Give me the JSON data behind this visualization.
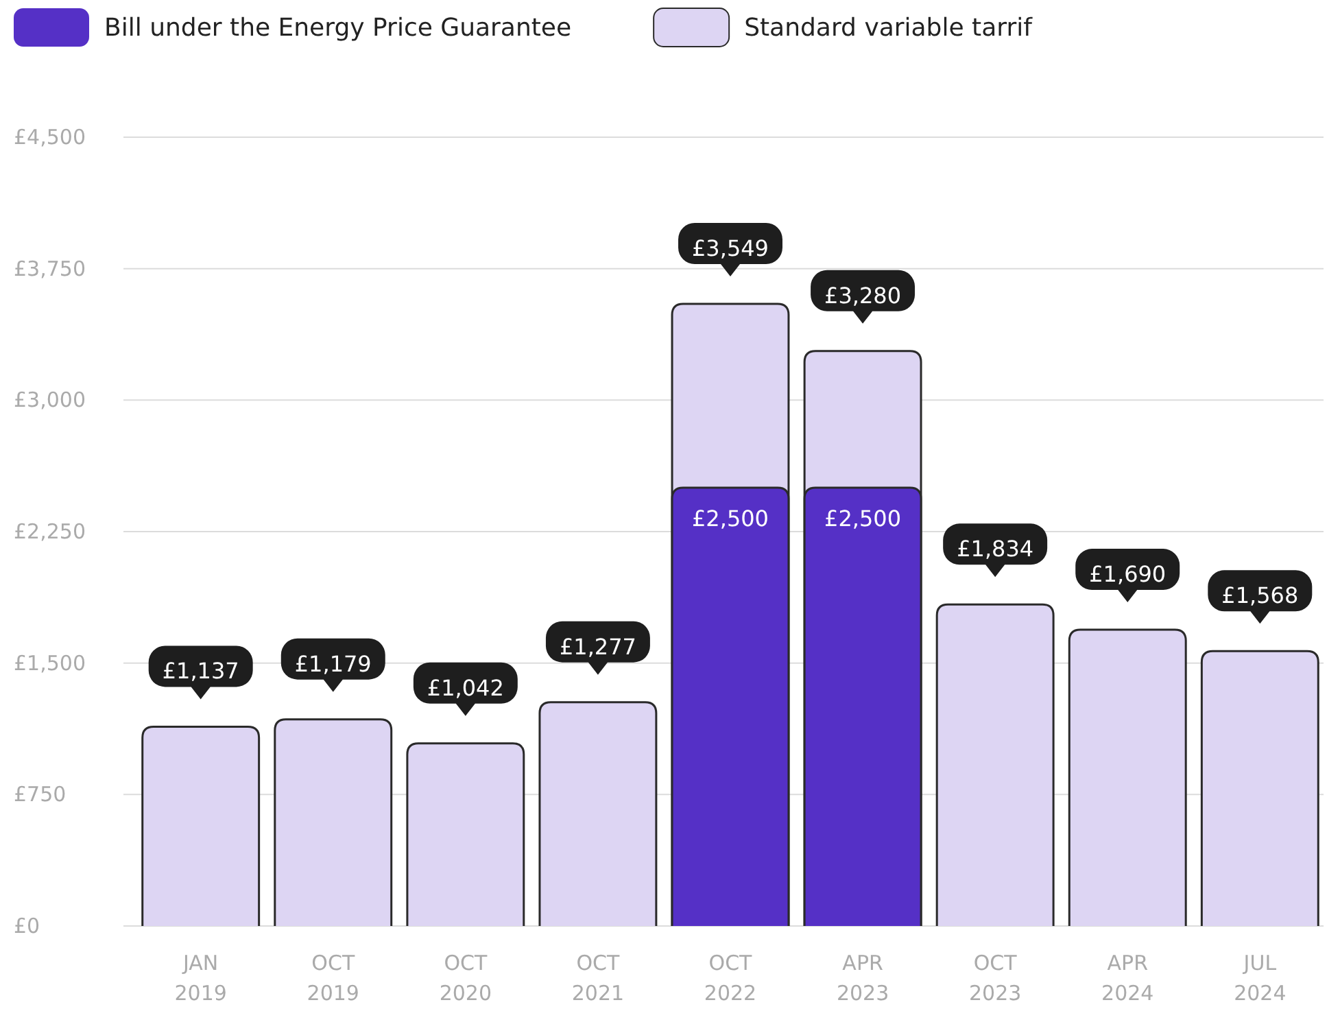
{
  "chart_data": {
    "type": "bar",
    "categories": [
      "JAN 2019",
      "OCT 2019",
      "OCT 2020",
      "OCT 2021",
      "OCT 2022",
      "APR 2023",
      "OCT 2023",
      "APR 2024",
      "JUL 2024"
    ],
    "series": [
      {
        "name": "Bill under the Energy Price Guarantee",
        "color": "#5530c6",
        "values": [
          null,
          null,
          null,
          null,
          2500,
          2500,
          null,
          null,
          null
        ],
        "value_labels": [
          null,
          null,
          null,
          null,
          "£2,500",
          "£2,500",
          null,
          null,
          null
        ]
      },
      {
        "name": "Standard variable tarrif",
        "color": "#ddd5f3",
        "values": [
          1137,
          1179,
          1042,
          1277,
          3549,
          3280,
          1834,
          1690,
          1568
        ],
        "value_labels": [
          "£1,137",
          "£1,179",
          "£1,042",
          "£1,277",
          "£3,549",
          "£3,280",
          "£1,834",
          "£1,690",
          "£1,568"
        ]
      }
    ],
    "ylim": [
      0,
      4500
    ],
    "yticks": [
      {
        "value": 0,
        "label": "£0"
      },
      {
        "value": 750,
        "label": "£750"
      },
      {
        "value": 1500,
        "label": "£1,500"
      },
      {
        "value": 2250,
        "label": "£2,250"
      },
      {
        "value": 3000,
        "label": "£3,000"
      },
      {
        "value": 3750,
        "label": "£3,750"
      },
      {
        "value": 4500,
        "label": "£4,500"
      }
    ],
    "grid": "y",
    "legend": "top left"
  }
}
